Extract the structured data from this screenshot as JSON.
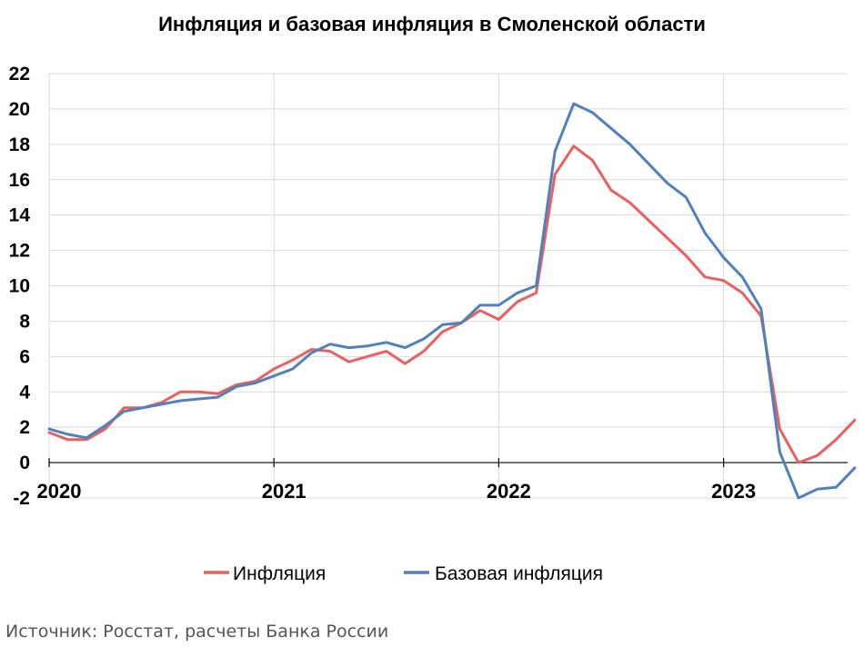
{
  "chart_data": {
    "type": "line",
    "title": "Инфляция и базовая инфляция в Смоленской области",
    "xlabel": "",
    "ylabel": "",
    "ylim": [
      -2,
      22
    ],
    "yticks": [
      -2,
      0,
      2,
      4,
      6,
      8,
      10,
      12,
      14,
      16,
      18,
      20,
      22
    ],
    "grid": true,
    "legend_position": "bottom",
    "x_tick_labels": [
      "2020",
      "2021",
      "2022",
      "2023"
    ],
    "x": [
      "2020-01",
      "2020-02",
      "2020-03",
      "2020-04",
      "2020-05",
      "2020-06",
      "2020-07",
      "2020-08",
      "2020-09",
      "2020-10",
      "2020-11",
      "2020-12",
      "2021-01",
      "2021-02",
      "2021-03",
      "2021-04",
      "2021-05",
      "2021-06",
      "2021-07",
      "2021-08",
      "2021-09",
      "2021-10",
      "2021-11",
      "2021-12",
      "2022-01",
      "2022-02",
      "2022-03",
      "2022-04",
      "2022-05",
      "2022-06",
      "2022-07",
      "2022-08",
      "2022-09",
      "2022-10",
      "2022-11",
      "2022-12",
      "2023-01",
      "2023-02",
      "2023-03",
      "2023-04",
      "2023-05",
      "2023-06",
      "2023-07",
      "2023-08"
    ],
    "series": [
      {
        "name": "Инфляция",
        "color": "#ec5f5f",
        "values": [
          1.7,
          1.3,
          1.3,
          1.9,
          3.1,
          3.1,
          3.4,
          4.0,
          4.0,
          3.9,
          4.4,
          4.6,
          5.3,
          5.8,
          6.4,
          6.3,
          5.7,
          6.0,
          6.3,
          5.6,
          6.3,
          7.4,
          7.9,
          8.6,
          8.1,
          9.1,
          9.6,
          16.3,
          17.9,
          17.1,
          15.4,
          14.7,
          13.7,
          12.7,
          11.7,
          10.5,
          10.3,
          9.6,
          8.3,
          1.9,
          0.0,
          0.4,
          1.3,
          2.4
        ]
      },
      {
        "name": "Базовая инфляция",
        "color": "#4f81bd",
        "values": [
          1.9,
          1.6,
          1.4,
          2.1,
          2.9,
          3.1,
          3.3,
          3.5,
          3.6,
          3.7,
          4.3,
          4.5,
          4.9,
          5.3,
          6.2,
          6.7,
          6.5,
          6.6,
          6.8,
          6.5,
          7.0,
          7.8,
          7.9,
          8.9,
          8.9,
          9.6,
          10.0,
          17.6,
          20.3,
          19.8,
          18.9,
          18.0,
          16.9,
          15.8,
          15.0,
          13.0,
          11.6,
          10.5,
          8.7,
          0.6,
          -2.0,
          -1.5,
          -1.4,
          -0.3
        ]
      }
    ]
  },
  "source_text": "Источник: Росстат, расчеты Банка России"
}
